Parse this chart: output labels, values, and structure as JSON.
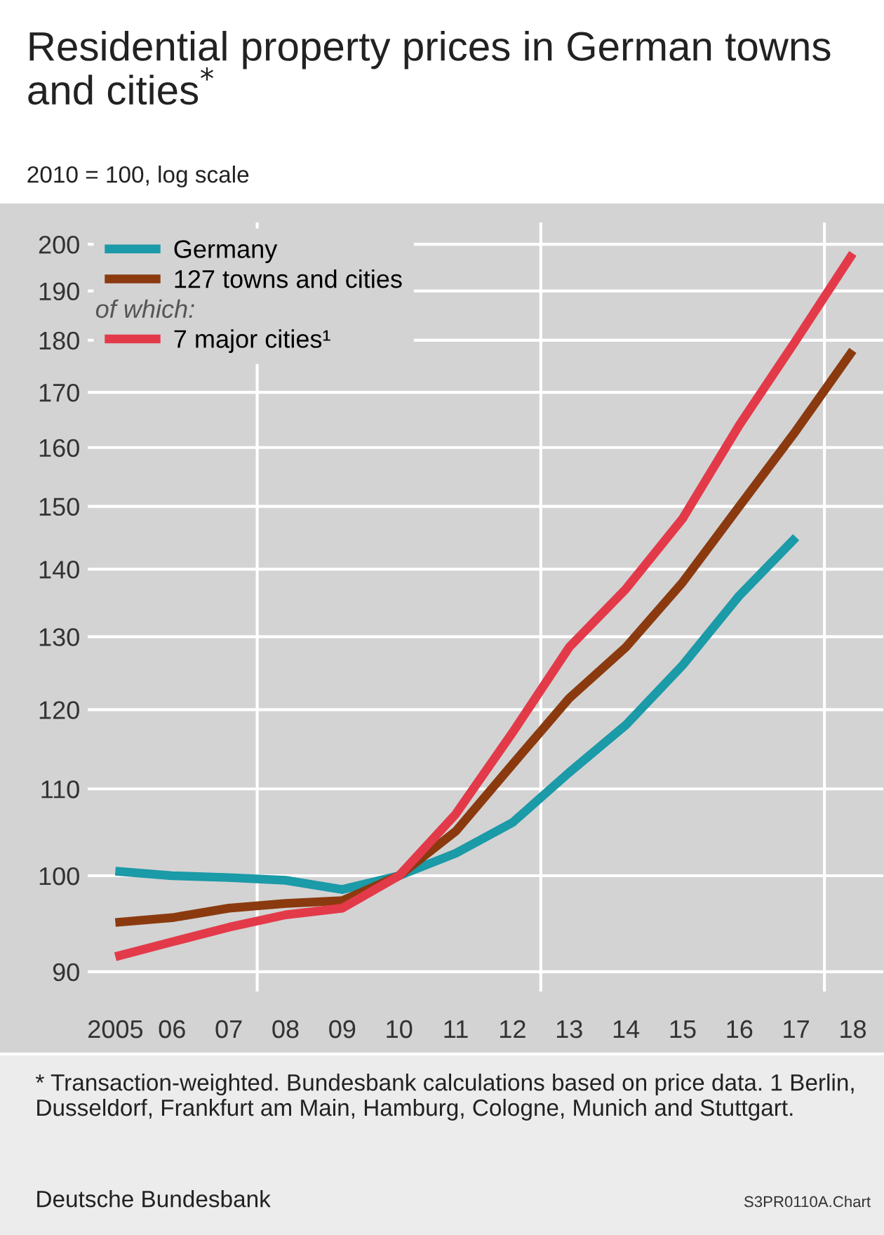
{
  "chart_data": {
    "type": "line",
    "title": "Residential property prices in German towns and cities$^{*}$",
    "subtitle": "2010 = 100, log scale",
    "x": [
      2005,
      2006,
      2007,
      2008,
      2009,
      2010,
      2011,
      2012,
      2013,
      2014,
      2015,
      2016,
      2017,
      2018
    ],
    "series": [
      {
        "name": "Germany",
        "color": "#1b9aa8",
        "values": [
          100.5,
          100,
          99.8,
          99.5,
          98.5,
          100,
          102.5,
          106,
          112,
          118,
          126,
          136,
          145,
          null
        ]
      },
      {
        "name": "127 towns and cities",
        "color": "#8b3a0f",
        "values": [
          95,
          95.5,
          96.5,
          97,
          97.3,
          100,
          105,
          113,
          121.5,
          128.5,
          138,
          150,
          163,
          178
        ]
      },
      {
        "name": "7 major cities¹",
        "color": "#e33a4a",
        "values": [
          91.5,
          93,
          94.5,
          95.8,
          96.5,
          100,
          107,
          117,
          128.5,
          137,
          148,
          164,
          180,
          198
        ]
      }
    ],
    "log": "y",
    "ylim": [
      88,
      205
    ],
    "yticks": [
      90,
      100,
      110,
      120,
      130,
      140,
      150,
      160,
      170,
      180,
      190,
      200
    ],
    "xlim": [
      2004.5,
      2018.55
    ],
    "xticks": [
      {
        "value": 2005,
        "label": "2005"
      },
      {
        "value": 2006,
        "label": "06"
      },
      {
        "value": 2007,
        "label": "07"
      },
      {
        "value": 2008,
        "label": "08"
      },
      {
        "value": 2009,
        "label": "09"
      },
      {
        "value": 2010,
        "label": "10"
      },
      {
        "value": 2011,
        "label": "11"
      },
      {
        "value": 2012,
        "label": "12"
      },
      {
        "value": 2013,
        "label": "13"
      },
      {
        "value": 2014,
        "label": "14"
      },
      {
        "value": 2015,
        "label": "15"
      },
      {
        "value": 2016,
        "label": "16"
      },
      {
        "value": 2017,
        "label": "17"
      },
      {
        "value": 2018,
        "label": "18"
      }
    ],
    "ref_lines": [
      {
        "axis": "x",
        "value": 2007.5,
        "color": "#ffffff"
      },
      {
        "axis": "x",
        "value": 2012.5,
        "color": "#ffffff"
      },
      {
        "axis": "x",
        "value": 2017.5,
        "color": "#ffffff"
      }
    ],
    "grid": "y",
    "legend": "top left",
    "line_style": "solid",
    "marker": "none",
    "annotations": [
      "of which:",
      "* Transaction-weighted. Bundesbank calculations based on price data. 1 Berlin, Dusseldorf, Frankfurt am Main, Hamburg, Cologne, Munich and Stuttgart.",
      "Deutsche Bundesbank",
      "S3PR0110A.Chart"
    ]
  }
}
